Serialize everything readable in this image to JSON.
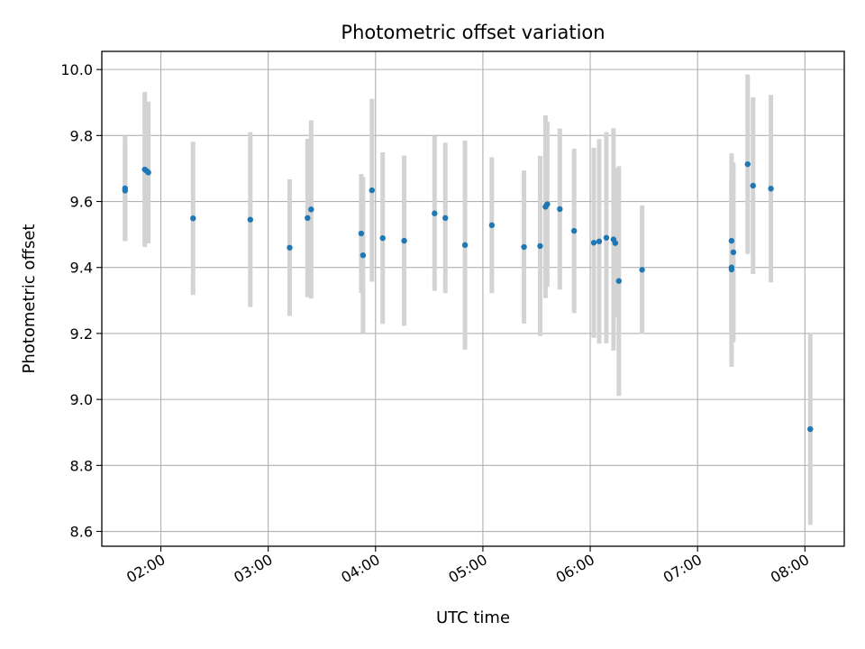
{
  "chart_data": {
    "type": "scatter",
    "title": "Photometric offset variation",
    "xlabel": "UTC time",
    "ylabel": "Photometric offset",
    "xlim": [
      "01:27",
      "08:22"
    ],
    "ylim": [
      8.555,
      10.055
    ],
    "grid": true,
    "x_ticks": [
      "02:00",
      "03:00",
      "04:00",
      "05:00",
      "06:00",
      "07:00",
      "08:00"
    ],
    "y_ticks": [
      8.6,
      8.8,
      9.0,
      9.2,
      9.4,
      9.6,
      9.8,
      10.0
    ],
    "y_tick_labels": [
      "8.6",
      "8.8",
      "9.0",
      "9.2",
      "9.4",
      "9.6",
      "9.8",
      "10.0"
    ],
    "marker_color": "#1f77b4",
    "errorbar_color": "#d3d3d3",
    "series": [
      {
        "points": [
          {
            "x": "01:40",
            "y": 9.633,
            "yerr": 0.15
          },
          {
            "x": "01:40",
            "y": 9.64,
            "yerr": 0.16
          },
          {
            "x": "01:51",
            "y": 9.697,
            "yerr": 0.235
          },
          {
            "x": "01:52",
            "y": 9.693,
            "yerr": 0.2
          },
          {
            "x": "01:53",
            "y": 9.688,
            "yerr": 0.215
          },
          {
            "x": "02:18",
            "y": 9.549,
            "yerr": 0.232
          },
          {
            "x": "02:50",
            "y": 9.545,
            "yerr": 0.265
          },
          {
            "x": "03:12",
            "y": 9.46,
            "yerr": 0.207
          },
          {
            "x": "03:22",
            "y": 9.55,
            "yerr": 0.24
          },
          {
            "x": "03:24",
            "y": 9.576,
            "yerr": 0.27
          },
          {
            "x": "03:52",
            "y": 9.503,
            "yerr": 0.18
          },
          {
            "x": "03:53",
            "y": 9.437,
            "yerr": 0.237
          },
          {
            "x": "03:58",
            "y": 9.634,
            "yerr": 0.277
          },
          {
            "x": "04:04",
            "y": 9.489,
            "yerr": 0.26
          },
          {
            "x": "04:16",
            "y": 9.481,
            "yerr": 0.258
          },
          {
            "x": "04:33",
            "y": 9.564,
            "yerr": 0.235
          },
          {
            "x": "04:39",
            "y": 9.55,
            "yerr": 0.228
          },
          {
            "x": "04:50",
            "y": 9.468,
            "yerr": 0.317
          },
          {
            "x": "05:05",
            "y": 9.528,
            "yerr": 0.206
          },
          {
            "x": "05:23",
            "y": 9.462,
            "yerr": 0.232
          },
          {
            "x": "05:32",
            "y": 9.465,
            "yerr": 0.273
          },
          {
            "x": "05:35",
            "y": 9.584,
            "yerr": 0.277
          },
          {
            "x": "05:36",
            "y": 9.592,
            "yerr": 0.25
          },
          {
            "x": "05:43",
            "y": 9.577,
            "yerr": 0.244
          },
          {
            "x": "05:51",
            "y": 9.511,
            "yerr": 0.249
          },
          {
            "x": "06:02",
            "y": 9.475,
            "yerr": 0.288
          },
          {
            "x": "06:05",
            "y": 9.479,
            "yerr": 0.31
          },
          {
            "x": "06:09",
            "y": 9.49,
            "yerr": 0.32
          },
          {
            "x": "06:13",
            "y": 9.485,
            "yerr": 0.337
          },
          {
            "x": "06:14",
            "y": 9.474,
            "yerr": 0.226
          },
          {
            "x": "06:16",
            "y": 9.359,
            "yerr": 0.348
          },
          {
            "x": "06:29",
            "y": 9.393,
            "yerr": 0.195
          },
          {
            "x": "07:19",
            "y": 9.394,
            "yerr": 0.295
          },
          {
            "x": "07:19",
            "y": 9.4,
            "yerr": 0.27
          },
          {
            "x": "07:19",
            "y": 9.481,
            "yerr": 0.265
          },
          {
            "x": "07:20",
            "y": 9.446,
            "yerr": 0.272
          },
          {
            "x": "07:28",
            "y": 9.713,
            "yerr": 0.272
          },
          {
            "x": "07:31",
            "y": 9.648,
            "yerr": 0.268
          },
          {
            "x": "07:41",
            "y": 9.639,
            "yerr": 0.284
          },
          {
            "x": "08:03",
            "y": 8.91,
            "yerr": 0.29
          }
        ]
      }
    ]
  }
}
